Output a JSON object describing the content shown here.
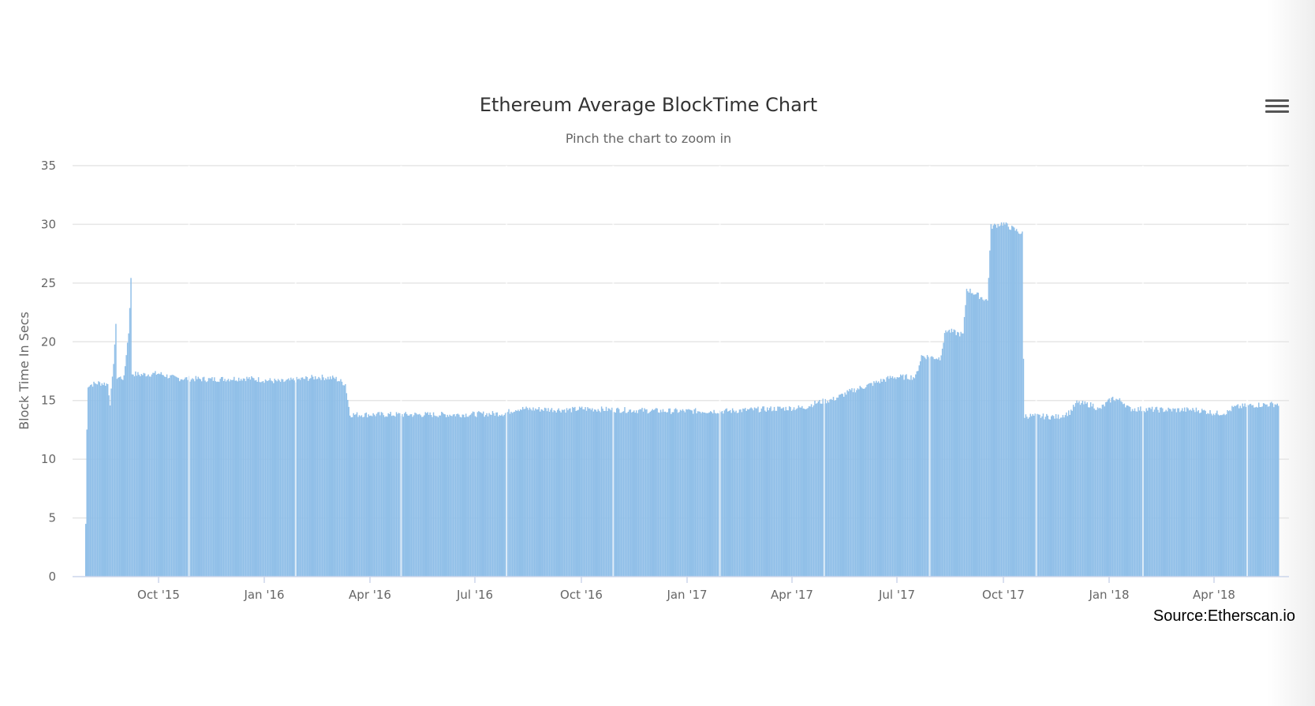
{
  "chart_data": {
    "type": "bar",
    "title": "Ethereum Average BlockTime Chart",
    "subtitle": "Pinch the chart to zoom in",
    "ylabel": "Block Time In Secs",
    "xlabel": "",
    "ylim": [
      0,
      35
    ],
    "y_ticks": [
      "0",
      "5",
      "10",
      "15",
      "20",
      "25",
      "30",
      "35"
    ],
    "x_ticks": [
      "Oct '15",
      "Jan '16",
      "Apr '16",
      "Jul '16",
      "Oct '16",
      "Jan '17",
      "Apr '17",
      "Jul '17",
      "Oct '17",
      "Jan '18",
      "Apr '18"
    ],
    "x_range": [
      "2015-07-30",
      "2018-05-24"
    ],
    "grid": true,
    "legend": "none",
    "color": "#90bfe8",
    "series": [
      {
        "x_start": "2015-07-30",
        "interval": "1 day",
        "keypoints": [
          [
            "2015-07-30",
            4.5
          ],
          [
            "2015-07-31",
            12.5
          ],
          [
            "2015-08-01",
            16.3
          ],
          [
            "2015-08-10",
            16.5
          ],
          [
            "2015-08-18",
            16.4
          ],
          [
            "2015-08-20",
            14.8
          ],
          [
            "2015-08-22",
            16.8
          ],
          [
            "2015-08-25",
            21.3
          ],
          [
            "2015-08-26",
            17.0
          ],
          [
            "2015-09-01",
            16.9
          ],
          [
            "2015-09-03",
            19.0
          ],
          [
            "2015-09-05",
            20.8
          ],
          [
            "2015-09-07",
            25.3
          ],
          [
            "2015-09-08",
            17.3
          ],
          [
            "2015-09-15",
            17.2
          ],
          [
            "2015-10-01",
            17.3
          ],
          [
            "2015-10-15",
            16.9
          ],
          [
            "2015-11-15",
            16.8
          ],
          [
            "2015-12-15",
            16.9
          ],
          [
            "2016-01-15",
            16.6
          ],
          [
            "2016-02-15",
            17.0
          ],
          [
            "2016-03-01",
            16.9
          ],
          [
            "2016-03-10",
            16.4
          ],
          [
            "2016-03-14",
            13.8
          ],
          [
            "2016-04-15",
            13.8
          ],
          [
            "2016-06-15",
            13.8
          ],
          [
            "2016-07-25",
            13.9
          ],
          [
            "2016-08-05",
            14.3
          ],
          [
            "2016-09-20",
            14.2
          ],
          [
            "2016-10-01",
            14.3
          ],
          [
            "2016-11-01",
            14.2
          ],
          [
            "2016-12-15",
            14.1
          ],
          [
            "2017-02-01",
            14.1
          ],
          [
            "2017-03-15",
            14.3
          ],
          [
            "2017-04-10",
            14.4
          ],
          [
            "2017-04-20",
            14.8
          ],
          [
            "2017-05-05",
            15.1
          ],
          [
            "2017-05-20",
            15.8
          ],
          [
            "2017-06-10",
            16.5
          ],
          [
            "2017-06-25",
            17.0
          ],
          [
            "2017-07-15",
            17.0
          ],
          [
            "2017-07-20",
            18.8
          ],
          [
            "2017-08-05",
            18.6
          ],
          [
            "2017-08-10",
            21.0
          ],
          [
            "2017-08-25",
            20.6
          ],
          [
            "2017-08-28",
            24.5
          ],
          [
            "2017-09-15",
            23.5
          ],
          [
            "2017-09-18",
            29.8
          ],
          [
            "2017-09-28",
            30.1
          ],
          [
            "2017-10-15",
            29.2
          ],
          [
            "2017-10-16",
            18.5
          ],
          [
            "2017-10-17",
            13.7
          ],
          [
            "2017-11-15",
            13.6
          ],
          [
            "2017-11-25",
            14.0
          ],
          [
            "2017-12-01",
            14.8
          ],
          [
            "2017-12-15",
            14.6
          ],
          [
            "2017-12-20",
            14.2
          ],
          [
            "2018-01-01",
            15.2
          ],
          [
            "2018-01-10",
            14.9
          ],
          [
            "2018-01-15",
            14.3
          ],
          [
            "2018-02-15",
            14.2
          ],
          [
            "2018-03-15",
            14.2
          ],
          [
            "2018-04-01",
            13.9
          ],
          [
            "2018-04-10",
            14.0
          ],
          [
            "2018-04-15",
            14.4
          ],
          [
            "2018-05-01",
            14.6
          ],
          [
            "2018-05-24",
            14.7
          ]
        ]
      }
    ],
    "source": "Source:Etherscan.io"
  }
}
